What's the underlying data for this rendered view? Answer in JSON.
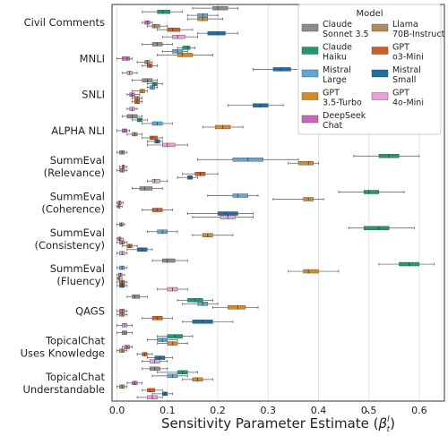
{
  "chart_data": {
    "type": "boxplot",
    "orientation": "horizontal",
    "xlabel": "Sensitivity Parameter Estimate",
    "xlabel_math": {
      "base": "β",
      "hat": "^",
      "superscript": "l",
      "subscript": "t"
    },
    "xlim": [
      -0.01,
      0.65
    ],
    "xticks": [
      0.0,
      0.1,
      0.2,
      0.3,
      0.4,
      0.5,
      0.6
    ],
    "grid": "vertical",
    "legend": {
      "title": "Model",
      "placement": "top-right",
      "columns": 2
    },
    "categories": [
      [
        "Civil Comments"
      ],
      [
        "MNLI"
      ],
      [
        "SNLI"
      ],
      [
        "ALPHA NLI"
      ],
      [
        "SummEval",
        "(Relevance)"
      ],
      [
        "SummEval",
        "(Coherence)"
      ],
      [
        "SummEval",
        "(Consistency)"
      ],
      [
        "SummEval",
        "(Fluency)"
      ],
      [
        "QAGS"
      ],
      [
        "TopicalChat",
        "Uses Knowledge"
      ],
      [
        "TopicalChat",
        "Understandable"
      ]
    ],
    "series": [
      {
        "name": [
          "Claude",
          "Sonnet 3.5"
        ],
        "color": "#8c8c8c",
        "boxes": [
          [
            0.15,
            0.19,
            0.2,
            0.22,
            0.24
          ],
          [
            0.05,
            0.07,
            0.08,
            0.09,
            0.11
          ],
          [
            0.03,
            0.05,
            0.06,
            0.07,
            0.08
          ],
          [
            0.01,
            0.02,
            0.03,
            0.04,
            0.05
          ],
          [
            0.0,
            0.005,
            0.01,
            0.015,
            0.02
          ],
          [
            0.03,
            0.045,
            0.055,
            0.07,
            0.09
          ],
          [
            0.0,
            0.005,
            0.008,
            0.012,
            0.015
          ],
          [
            0.07,
            0.09,
            0.1,
            0.115,
            0.14
          ],
          [
            0.02,
            0.03,
            0.035,
            0.045,
            0.06
          ],
          [
            0.0,
            0.01,
            0.015,
            0.02,
            0.03
          ],
          [
            0.05,
            0.065,
            0.075,
            0.085,
            0.1
          ]
        ]
      },
      {
        "name": [
          "Claude",
          "Haiku"
        ],
        "color": "#1a9c73",
        "boxes": [
          [
            0.05,
            0.08,
            0.09,
            0.105,
            0.13
          ],
          [
            0.12,
            0.13,
            0.14,
            0.145,
            0.155
          ],
          [
            0.06,
            0.07,
            0.075,
            0.08,
            0.09
          ],
          [
            0.03,
            0.04,
            0.045,
            0.05,
            0.06
          ],
          [
            0.47,
            0.52,
            0.54,
            0.56,
            0.6
          ],
          [
            0.44,
            0.49,
            0.5,
            0.52,
            0.57
          ],
          [
            0.46,
            0.49,
            0.52,
            0.54,
            0.59
          ],
          [
            0.52,
            0.56,
            0.58,
            0.6,
            0.63
          ],
          [
            0.12,
            0.14,
            0.155,
            0.17,
            0.19
          ],
          [
            0.08,
            0.1,
            0.115,
            0.13,
            0.15
          ],
          [
            0.08,
            0.12,
            0.13,
            0.14,
            0.16
          ]
        ]
      },
      {
        "name": [
          "Mistral",
          "Large"
        ],
        "color": "#5aa8dd",
        "boxes": [
          [
            0.14,
            0.16,
            0.17,
            0.18,
            0.2
          ],
          [
            0.09,
            0.11,
            0.12,
            0.13,
            0.14
          ],
          [
            0.06,
            0.065,
            0.07,
            0.075,
            0.08
          ],
          [
            0.05,
            0.07,
            0.08,
            0.09,
            0.11
          ],
          [
            0.16,
            0.23,
            0.26,
            0.29,
            0.36
          ],
          [
            0.18,
            0.23,
            0.24,
            0.26,
            0.28
          ],
          [
            0.06,
            0.08,
            0.09,
            0.1,
            0.12
          ],
          [
            0.0,
            0.005,
            0.01,
            0.015,
            0.02
          ],
          [
            0.13,
            0.16,
            0.17,
            0.18,
            0.2
          ],
          [
            0.06,
            0.08,
            0.09,
            0.1,
            0.12
          ],
          [
            0.07,
            0.1,
            0.11,
            0.12,
            0.14
          ]
        ]
      },
      {
        "name": [
          "GPT",
          "3.5-Turbo"
        ],
        "color": "#d88a20",
        "boxes": [
          [
            0.14,
            0.16,
            0.17,
            0.18,
            0.21
          ],
          [
            0.08,
            0.12,
            0.13,
            0.15,
            0.19
          ],
          [
            0.03,
            0.045,
            0.05,
            0.055,
            0.06
          ],
          [
            0.17,
            0.195,
            0.21,
            0.225,
            0.25
          ],
          [
            0.34,
            0.36,
            0.38,
            0.39,
            0.4
          ],
          [
            0.31,
            0.37,
            0.38,
            0.39,
            0.41
          ],
          [
            0.15,
            0.17,
            0.18,
            0.19,
            0.23
          ],
          [
            0.34,
            0.37,
            0.38,
            0.4,
            0.44
          ],
          [
            0.19,
            0.22,
            0.24,
            0.255,
            0.28
          ],
          [
            0.08,
            0.1,
            0.11,
            0.12,
            0.14
          ],
          [
            0.13,
            0.15,
            0.16,
            0.17,
            0.19
          ]
        ]
      },
      {
        "name": [
          "DeepSeek",
          "Chat"
        ],
        "color": "#cc66bb",
        "boxes": [
          [
            0.05,
            0.055,
            0.06,
            0.065,
            0.07
          ],
          [
            0.0,
            0.01,
            0.02,
            0.025,
            0.03
          ],
          [
            0.02,
            0.025,
            0.03,
            0.035,
            0.045
          ],
          [
            0.0,
            0.01,
            0.015,
            0.02,
            0.025
          ],
          [
            0.005,
            0.01,
            0.012,
            0.015,
            0.02
          ],
          [
            0.0,
            0.002,
            0.005,
            0.008,
            0.012
          ],
          [
            0.0,
            0.002,
            0.005,
            0.008,
            0.012
          ],
          [
            0.0,
            0.003,
            0.007,
            0.01,
            0.015
          ],
          [
            0.0,
            0.005,
            0.01,
            0.015,
            0.02
          ],
          [
            0.01,
            0.015,
            0.02,
            0.025,
            0.03
          ],
          [
            0.02,
            0.03,
            0.035,
            0.04,
            0.05
          ]
        ]
      },
      {
        "name": [
          "Llama",
          "70B-Instruct"
        ],
        "color": "#b58a5a",
        "boxes": [
          [
            0.06,
            0.07,
            0.075,
            0.085,
            0.1
          ],
          [
            0.04,
            0.055,
            0.06,
            0.065,
            0.07
          ],
          [
            0.03,
            0.035,
            0.04,
            0.045,
            0.05
          ],
          [
            0.02,
            0.03,
            0.035,
            0.04,
            0.05
          ],
          [
            0.0,
            0.005,
            0.01,
            0.015,
            0.02
          ],
          [
            0.0,
            0.002,
            0.004,
            0.006,
            0.01
          ],
          [
            0.0,
            0.005,
            0.01,
            0.015,
            0.02
          ],
          [
            0.0,
            0.002,
            0.004,
            0.006,
            0.01
          ],
          [
            0.0,
            0.005,
            0.01,
            0.015,
            0.02
          ],
          [
            0.0,
            0.005,
            0.01,
            0.015,
            0.02
          ],
          [
            0.0,
            0.005,
            0.01,
            0.015,
            0.02
          ]
        ]
      },
      {
        "name": [
          "GPT",
          "o3-Mini"
        ],
        "color": "#d95a1a",
        "boxes": [
          [
            0.08,
            0.1,
            0.11,
            0.125,
            0.15
          ],
          [
            0.05,
            0.06,
            0.065,
            0.07,
            0.08
          ],
          [
            0.03,
            0.035,
            0.04,
            0.045,
            0.05
          ],
          [
            0.05,
            0.065,
            0.07,
            0.08,
            0.09
          ],
          [
            0.13,
            0.155,
            0.165,
            0.175,
            0.2
          ],
          [
            0.05,
            0.07,
            0.08,
            0.09,
            0.11
          ],
          [
            0.01,
            0.02,
            0.025,
            0.03,
            0.04
          ],
          [
            0.0,
            0.005,
            0.01,
            0.015,
            0.02
          ],
          [
            0.05,
            0.07,
            0.08,
            0.09,
            0.11
          ],
          [
            0.04,
            0.05,
            0.055,
            0.06,
            0.07
          ],
          [
            0.05,
            0.06,
            0.065,
            0.075,
            0.09
          ]
        ]
      },
      {
        "name": [
          "Mistral",
          "Small"
        ],
        "color": "#1a6fa5",
        "boxes": [
          [
            0.16,
            0.18,
            0.2,
            0.215,
            0.24
          ],
          [
            0.27,
            0.31,
            0.325,
            0.345,
            0.37
          ],
          [
            0.22,
            0.27,
            0.285,
            0.3,
            0.33
          ],
          [
            0.06,
            0.075,
            0.08,
            0.085,
            0.09
          ],
          [
            0.12,
            0.14,
            0.145,
            0.15,
            0.16
          ],
          [
            0.14,
            0.2,
            0.215,
            0.24,
            0.27
          ],
          [
            0.02,
            0.04,
            0.05,
            0.06,
            0.07
          ],
          [
            0.0,
            0.005,
            0.01,
            0.015,
            0.02
          ],
          [
            0.13,
            0.15,
            0.17,
            0.19,
            0.23
          ],
          [
            0.06,
            0.075,
            0.085,
            0.095,
            0.11
          ],
          [
            0.07,
            0.09,
            0.095,
            0.1,
            0.11
          ]
        ]
      },
      {
        "name": [
          "GPT",
          "4o-Mini"
        ],
        "color": "#eaa0d8",
        "boxes": [
          [
            0.09,
            0.11,
            0.12,
            0.135,
            0.16
          ],
          [
            0.01,
            0.02,
            0.025,
            0.03,
            0.04
          ],
          [
            0.02,
            0.025,
            0.03,
            0.035,
            0.04
          ],
          [
            0.06,
            0.09,
            0.1,
            0.115,
            0.14
          ],
          [
            0.06,
            0.07,
            0.075,
            0.085,
            0.1
          ],
          [
            0.15,
            0.205,
            0.22,
            0.235,
            0.27
          ],
          [
            0.0,
            0.005,
            0.01,
            0.015,
            0.02
          ],
          [
            0.08,
            0.1,
            0.11,
            0.12,
            0.14
          ],
          [
            0.0,
            0.01,
            0.015,
            0.02,
            0.03
          ],
          [
            0.05,
            0.065,
            0.075,
            0.085,
            0.1
          ],
          [
            0.04,
            0.06,
            0.07,
            0.08,
            0.09
          ]
        ]
      }
    ]
  }
}
